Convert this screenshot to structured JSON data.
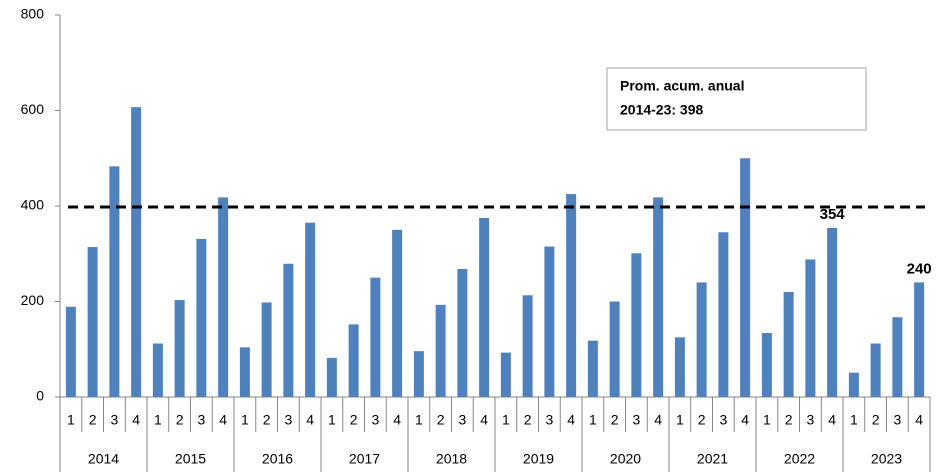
{
  "chart_data": {
    "type": "bar",
    "groups": [
      "2014",
      "2015",
      "2016",
      "2017",
      "2018",
      "2019",
      "2020",
      "2021",
      "2022",
      "2023"
    ],
    "categories": [
      "1",
      "2",
      "3",
      "4",
      "1",
      "2",
      "3",
      "4",
      "1",
      "2",
      "3",
      "4",
      "1",
      "2",
      "3",
      "4",
      "1",
      "2",
      "3",
      "4",
      "1",
      "2",
      "3",
      "4",
      "1",
      "2",
      "3",
      "4",
      "1",
      "2",
      "3",
      "4",
      "1",
      "2",
      "3",
      "4",
      "1",
      "2",
      "3",
      "4"
    ],
    "values": [
      189,
      314,
      483,
      607,
      112,
      203,
      331,
      418,
      104,
      198,
      279,
      365,
      82,
      152,
      250,
      350,
      96,
      193,
      268,
      375,
      93,
      213,
      315,
      425,
      118,
      200,
      301,
      418,
      125,
      240,
      345,
      500,
      134,
      220,
      288,
      354,
      51,
      112,
      167,
      240
    ],
    "value_labels": [
      null,
      null,
      null,
      null,
      null,
      null,
      null,
      null,
      null,
      null,
      null,
      null,
      null,
      null,
      null,
      null,
      null,
      null,
      null,
      null,
      null,
      null,
      null,
      null,
      null,
      null,
      null,
      null,
      null,
      null,
      null,
      null,
      null,
      null,
      null,
      "354",
      null,
      null,
      null,
      "240"
    ],
    "color": "#4f81bd",
    "reference_line": 398,
    "annotation": [
      "Prom. acum. anual",
      "2014-23: 398"
    ],
    "ylim": [
      0,
      800
    ],
    "yticks": [
      0,
      200,
      400,
      600,
      800
    ],
    "grid": false
  }
}
